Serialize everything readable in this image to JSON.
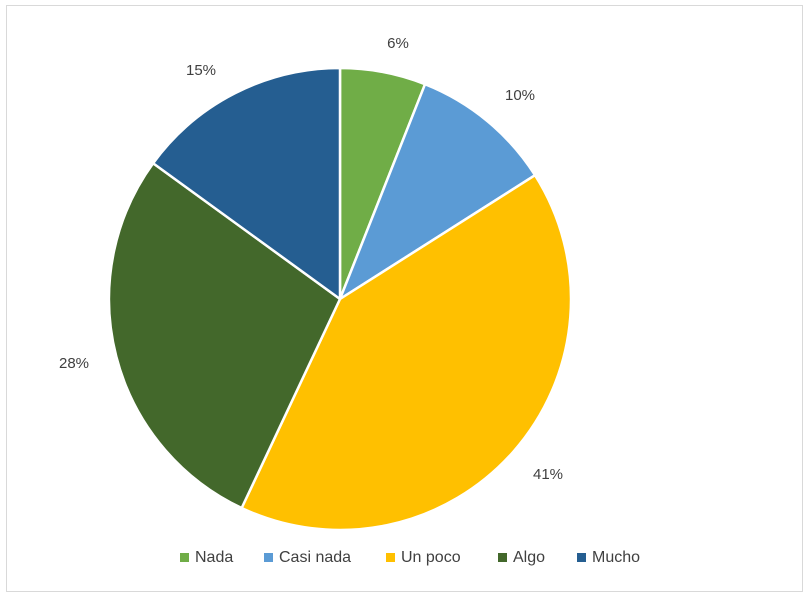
{
  "chart_data": {
    "type": "pie",
    "categories": [
      "Nada",
      "Casi nada",
      "Un poco",
      "Algo",
      "Mucho"
    ],
    "values": [
      6,
      10,
      41,
      28,
      15
    ],
    "labels": [
      "6%",
      "10%",
      "41%",
      "28%",
      "15%"
    ],
    "colors": [
      "#70AD47",
      "#5B9BD5",
      "#FFC000",
      "#43682B",
      "#255E91"
    ],
    "legend_position": "bottom",
    "start_angle": "top, clockwise"
  }
}
